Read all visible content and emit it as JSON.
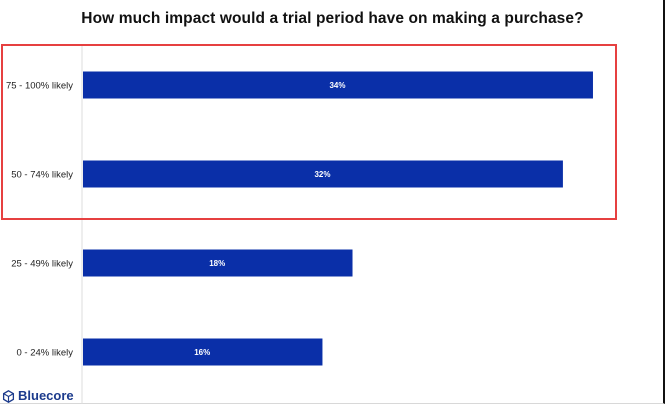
{
  "title": "How much impact would a trial period have on making a purchase?",
  "brand": {
    "name": "Bluecore",
    "icon": "bluecore-cube-icon",
    "color": "#1b3a8c"
  },
  "highlight": {
    "color": "#e64040",
    "categories": [
      "75 - 100% likely",
      "50 - 74% likely"
    ]
  },
  "chart_data": {
    "type": "bar",
    "orientation": "horizontal",
    "title": "How much impact would a trial period have on making a purchase?",
    "categories": [
      "75 - 100% likely",
      "50 - 74% likely",
      "25 - 49% likely",
      "0 - 24% likely"
    ],
    "values": [
      34,
      32,
      18,
      16
    ],
    "value_labels": [
      "34%",
      "32%",
      "18%",
      "16%"
    ],
    "xlim": [
      0,
      35
    ],
    "xlabel": "",
    "ylabel": "",
    "grid": false,
    "bar_color": "#0a2fa8"
  }
}
